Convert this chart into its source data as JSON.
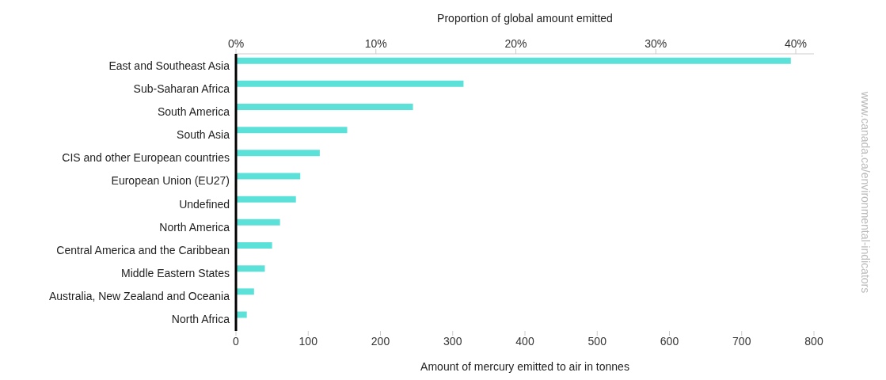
{
  "chart_data": {
    "type": "bar",
    "orientation": "horizontal",
    "xlabel": "Amount of mercury emitted to air in tonnes",
    "x2label": "Proportion of global amount emitted",
    "categories": [
      "East and Southeast Asia",
      "Sub-Saharan Africa",
      "South America",
      "South Asia",
      "CIS and other European countries",
      "European Union (EU27)",
      "Undefined",
      "North America",
      "Central America and the Caribbean",
      "Middle Eastern States",
      "Australia, New Zealand and Oceania",
      "North Africa"
    ],
    "values": [
      768,
      315,
      245,
      154,
      116,
      89,
      83,
      61,
      50,
      40,
      25,
      15
    ],
    "color": "#5ce1d9",
    "xlim": [
      0,
      800
    ],
    "xticks": [
      0,
      100,
      200,
      300,
      400,
      500,
      600,
      700,
      800
    ],
    "x2lim": [
      0,
      41.3
    ],
    "x2ticks": [
      {
        "value": 0,
        "label": "0%"
      },
      {
        "value": 10,
        "label": "10%"
      },
      {
        "value": 20,
        "label": "20%"
      },
      {
        "value": 30,
        "label": "30%"
      },
      {
        "value": 40,
        "label": "40%"
      }
    ],
    "grid": false,
    "legend": false,
    "annotations": [
      "www.canada.ca/environmental-indicators"
    ]
  }
}
